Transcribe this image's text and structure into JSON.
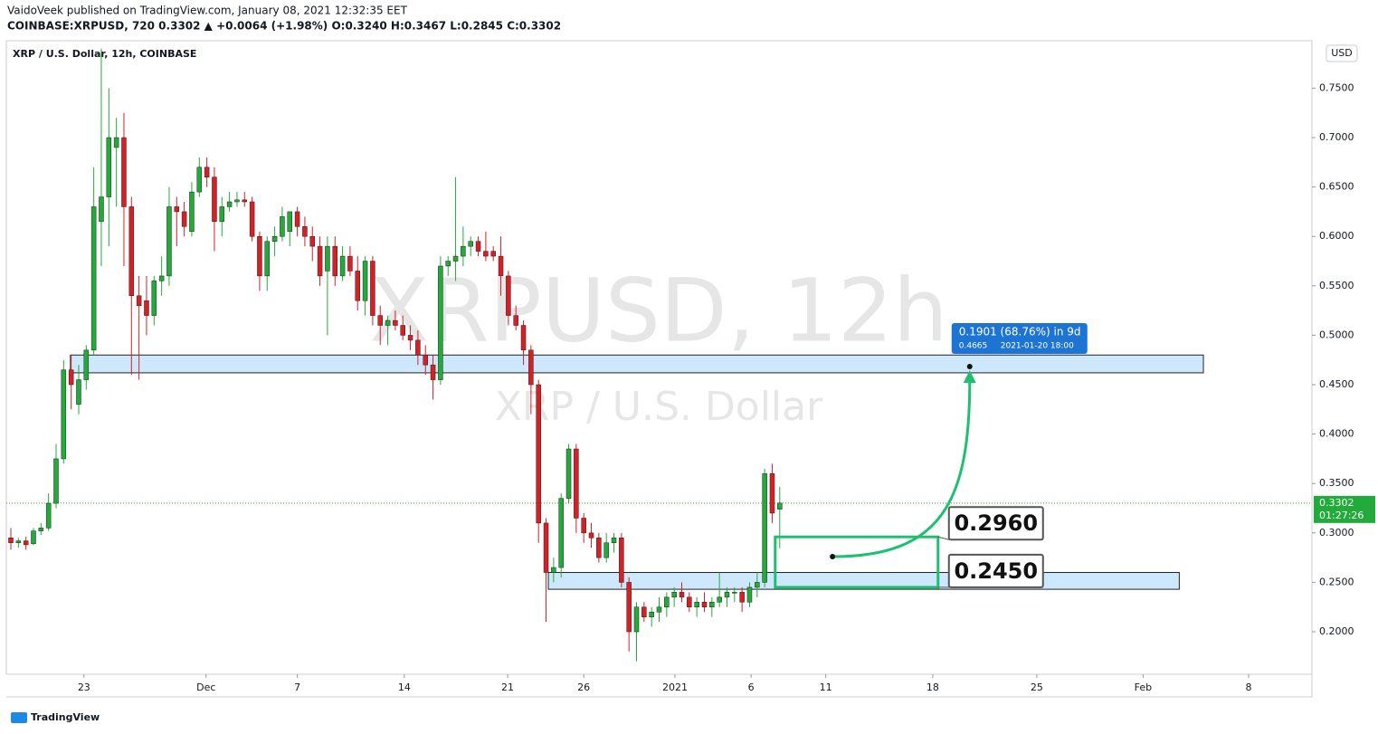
{
  "header": {
    "line1": "VaidoVeek published on TradingView.com, January 08, 2021 12:32:35 EET",
    "line2": "COINBASE:XRPUSD, 720  0.3302  ▲ +0.0064 (+1.98%)  O:0.3240  H:0.3467  L:0.2845  C:0.3302"
  },
  "footer": {
    "brand": "TradingView"
  },
  "chart_data": {
    "type": "candlestick",
    "title": "XRP / U.S. Dollar, 12h, COINBASE",
    "watermark": "XRPUSD, 12h",
    "watermark_sub": "XRP / U.S. Dollar",
    "currency": "USD",
    "up_color": "#22ab3a",
    "down_color": "#d71f26",
    "open": [
      0.295,
      0.29,
      0.292,
      0.289,
      0.302,
      0.305,
      0.33,
      0.375,
      0.465,
      0.43,
      0.455,
      0.485,
      0.615,
      0.64,
      0.69,
      0.7,
      0.63,
      0.54,
      0.535,
      0.52,
      0.555,
      0.56,
      0.63,
      0.625,
      0.605,
      0.645,
      0.67,
      0.66,
      0.615,
      0.63,
      0.635,
      0.637,
      0.635,
      0.6,
      0.56,
      0.595,
      0.6,
      0.605,
      0.625,
      0.61,
      0.6,
      0.59,
      0.565,
      0.59,
      0.56,
      0.58,
      0.565,
      0.535,
      0.575,
      0.52,
      0.51,
      0.515,
      0.51,
      0.5,
      0.495,
      0.48,
      0.47,
      0.455,
      0.57,
      0.575,
      0.58,
      0.59,
      0.595,
      0.585,
      0.585,
      0.58,
      0.56,
      0.52,
      0.51,
      0.485,
      0.45,
      0.31,
      0.26,
      0.265,
      0.335,
      0.385,
      0.315,
      0.3,
      0.295,
      0.275,
      0.29,
      0.295,
      0.25,
      0.2,
      0.225,
      0.215,
      0.22,
      0.225,
      0.235,
      0.24,
      0.235,
      0.225,
      0.23,
      0.225,
      0.23,
      0.235,
      0.24,
      0.24,
      0.23,
      0.245,
      0.25,
      0.36,
      0.324
    ],
    "high": [
      0.305,
      0.295,
      0.296,
      0.305,
      0.31,
      0.34,
      0.39,
      0.475,
      0.48,
      0.47,
      0.49,
      0.67,
      0.79,
      0.75,
      0.72,
      0.725,
      0.64,
      0.56,
      0.56,
      0.56,
      0.58,
      0.65,
      0.64,
      0.635,
      0.655,
      0.68,
      0.68,
      0.67,
      0.64,
      0.645,
      0.645,
      0.645,
      0.64,
      0.605,
      0.6,
      0.61,
      0.63,
      0.625,
      0.63,
      0.62,
      0.61,
      0.6,
      0.6,
      0.6,
      0.59,
      0.59,
      0.58,
      0.58,
      0.58,
      0.53,
      0.52,
      0.525,
      0.52,
      0.51,
      0.505,
      0.49,
      0.48,
      0.58,
      0.58,
      0.66,
      0.61,
      0.6,
      0.6,
      0.605,
      0.59,
      0.6,
      0.565,
      0.53,
      0.515,
      0.49,
      0.455,
      0.315,
      0.275,
      0.34,
      0.39,
      0.39,
      0.32,
      0.31,
      0.3,
      0.3,
      0.3,
      0.3,
      0.255,
      0.23,
      0.23,
      0.225,
      0.235,
      0.24,
      0.245,
      0.25,
      0.24,
      0.235,
      0.24,
      0.235,
      0.26,
      0.245,
      0.245,
      0.245,
      0.25,
      0.26,
      0.365,
      0.37,
      0.3467
    ],
    "low": [
      0.283,
      0.285,
      0.283,
      0.288,
      0.298,
      0.302,
      0.325,
      0.37,
      0.425,
      0.42,
      0.445,
      0.48,
      0.57,
      0.59,
      0.63,
      0.57,
      0.46,
      0.455,
      0.5,
      0.51,
      0.54,
      0.55,
      0.59,
      0.6,
      0.6,
      0.64,
      0.65,
      0.585,
      0.6,
      0.625,
      0.63,
      0.63,
      0.595,
      0.545,
      0.545,
      0.58,
      0.595,
      0.59,
      0.6,
      0.59,
      0.575,
      0.55,
      0.5,
      0.55,
      0.555,
      0.56,
      0.525,
      0.52,
      0.51,
      0.49,
      0.49,
      0.505,
      0.495,
      0.485,
      0.47,
      0.46,
      0.435,
      0.45,
      0.56,
      0.555,
      0.57,
      0.58,
      0.58,
      0.575,
      0.575,
      0.54,
      0.51,
      0.505,
      0.47,
      0.42,
      0.29,
      0.21,
      0.25,
      0.255,
      0.33,
      0.3,
      0.29,
      0.285,
      0.27,
      0.27,
      0.28,
      0.245,
      0.18,
      0.17,
      0.21,
      0.205,
      0.21,
      0.215,
      0.225,
      0.23,
      0.22,
      0.215,
      0.22,
      0.215,
      0.225,
      0.225,
      0.23,
      0.22,
      0.225,
      0.235,
      0.245,
      0.31,
      0.2845
    ],
    "close": [
      0.29,
      0.292,
      0.288,
      0.302,
      0.305,
      0.33,
      0.375,
      0.465,
      0.45,
      0.455,
      0.485,
      0.63,
      0.64,
      0.7,
      0.7,
      0.63,
      0.54,
      0.53,
      0.52,
      0.555,
      0.56,
      0.63,
      0.625,
      0.61,
      0.645,
      0.67,
      0.66,
      0.615,
      0.63,
      0.635,
      0.637,
      0.635,
      0.6,
      0.56,
      0.595,
      0.6,
      0.62,
      0.625,
      0.61,
      0.6,
      0.59,
      0.56,
      0.59,
      0.56,
      0.58,
      0.565,
      0.535,
      0.575,
      0.52,
      0.51,
      0.515,
      0.51,
      0.5,
      0.495,
      0.48,
      0.47,
      0.455,
      0.57,
      0.575,
      0.58,
      0.59,
      0.595,
      0.585,
      0.58,
      0.58,
      0.56,
      0.52,
      0.51,
      0.485,
      0.45,
      0.31,
      0.26,
      0.265,
      0.335,
      0.385,
      0.315,
      0.3,
      0.295,
      0.275,
      0.29,
      0.295,
      0.25,
      0.2,
      0.225,
      0.215,
      0.22,
      0.225,
      0.235,
      0.24,
      0.235,
      0.225,
      0.23,
      0.225,
      0.23,
      0.235,
      0.24,
      0.24,
      0.23,
      0.245,
      0.25,
      0.36,
      0.32,
      0.3302
    ],
    "xlim": [
      -0.6,
      172.6
    ],
    "xticks": [
      {
        "value": 9.7,
        "label": "23"
      },
      {
        "value": 25.9,
        "label": "Dec"
      },
      {
        "value": 38,
        "label": "7"
      },
      {
        "value": 52.2,
        "label": "14"
      },
      {
        "value": 65.9,
        "label": "21"
      },
      {
        "value": 76,
        "label": "26"
      },
      {
        "value": 88.1,
        "label": "2021"
      },
      {
        "value": 98.2,
        "label": "6"
      },
      {
        "value": 108.1,
        "label": "11"
      },
      {
        "value": 122.3,
        "label": "18"
      },
      {
        "value": 136.1,
        "label": "25"
      },
      {
        "value": 150.2,
        "label": "Feb"
      },
      {
        "value": 164.2,
        "label": "8"
      }
    ],
    "ylim": [
      0.157,
      0.798
    ],
    "yticks": [
      {
        "value": 0.2,
        "label": "0.2000"
      },
      {
        "value": 0.25,
        "label": "0.2500"
      },
      {
        "value": 0.3,
        "label": "0.3000"
      },
      {
        "value": 0.35,
        "label": "0.3500"
      },
      {
        "value": 0.4,
        "label": "0.4000"
      },
      {
        "value": 0.45,
        "label": "0.4500"
      },
      {
        "value": 0.5,
        "label": "0.5000"
      },
      {
        "value": 0.55,
        "label": "0.5500"
      },
      {
        "value": 0.6,
        "label": "0.6000"
      },
      {
        "value": 0.65,
        "label": "0.6500"
      },
      {
        "value": 0.7,
        "label": "0.7000"
      },
      {
        "value": 0.75,
        "label": "0.7500"
      }
    ],
    "last_price": {
      "value": 0.3302,
      "label": "0.3302"
    },
    "countdown": "01:27:26",
    "zones": [
      {
        "x": [
          7.9,
          158.2
        ],
        "y": [
          0.462,
          0.48
        ]
      },
      {
        "x": [
          71.3,
          155
        ],
        "y": [
          0.243,
          0.26
        ]
      }
    ],
    "target_box": {
      "x": [
        101.4,
        123
      ],
      "top": {
        "value": 0.296,
        "label": "0.2960"
      },
      "bottom": {
        "value": 0.245,
        "label": "0.2450"
      }
    },
    "measure": {
      "x": 127.2,
      "text": "0.1901 (68.76%) in 9d",
      "price": {
        "value": 0.4665,
        "label": "0.4665"
      },
      "time": "2021-01-20  18:00"
    }
  }
}
